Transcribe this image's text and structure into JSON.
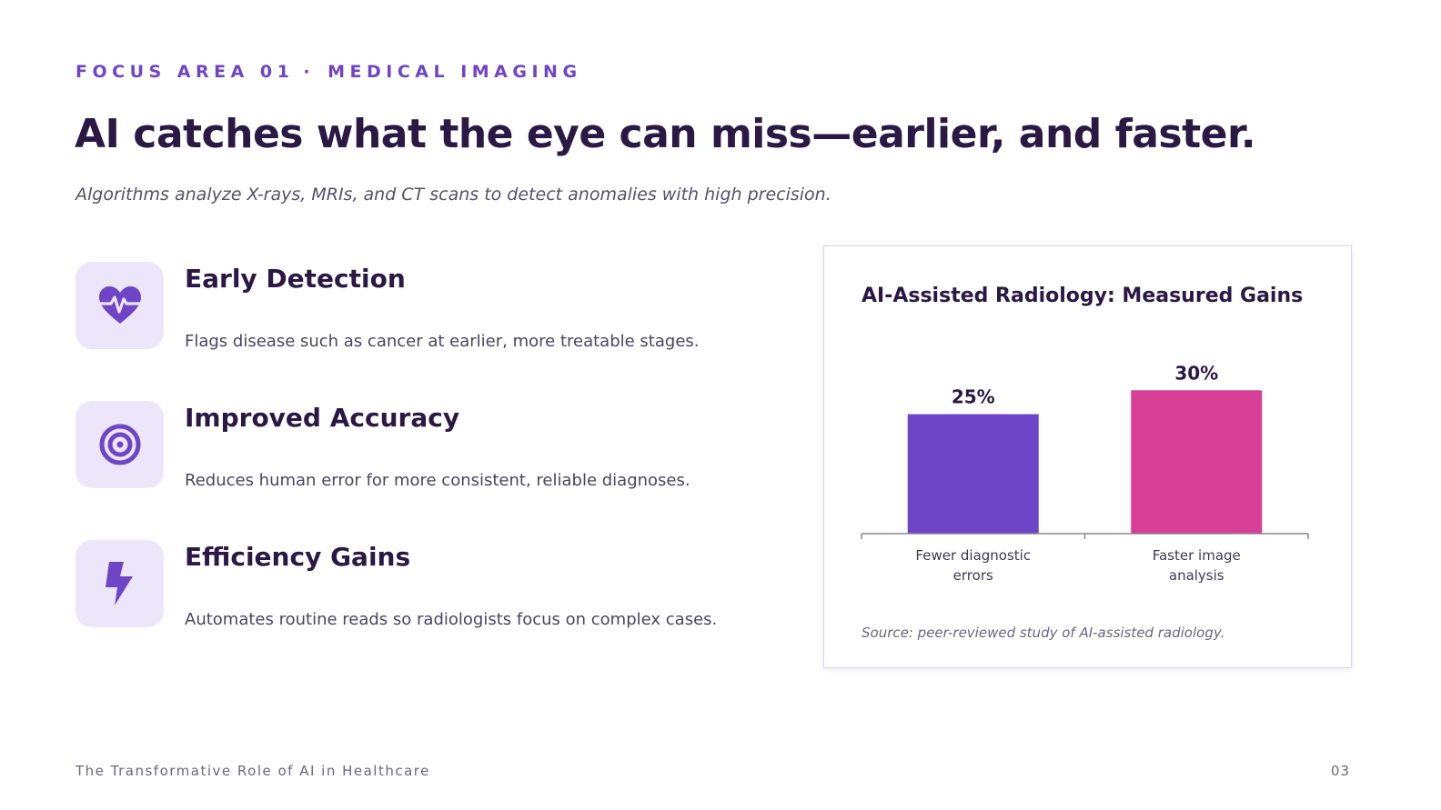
{
  "kicker": {
    "area": "FOCUS AREA 01",
    "separator": "·",
    "topic": "MEDICAL IMAGING"
  },
  "headline": "AI catches what the eye can miss—earlier, and faster.",
  "subhead": "Algorithms analyze X-rays, MRIs, and CT scans to detect anomalies with high precision.",
  "features": [
    {
      "icon": "heartbeat-icon",
      "title": "Early Detection",
      "description": "Flags disease such as cancer at earlier, more treatable stages."
    },
    {
      "icon": "target-icon",
      "title": "Improved Accuracy",
      "description": "Reduces human error for more consistent, reliable diagnoses."
    },
    {
      "icon": "lightning-bolt-icon",
      "title": "Efficiency Gains",
      "description": "Automates routine reads so radiologists focus on complex cases."
    }
  ],
  "colors": {
    "accent": "#6f45c8",
    "bar_1": "#6f45c8",
    "bar_2": "#d63f95",
    "icon_bg": "#ede6fb",
    "heading": "#2a1845"
  },
  "chart_data": {
    "type": "bar",
    "title": "AI-Assisted Radiology: Measured Gains",
    "categories": [
      [
        "Fewer diagnostic",
        "errors"
      ],
      [
        "Faster image",
        "analysis"
      ]
    ],
    "values": [
      25,
      30
    ],
    "value_labels": [
      "25%",
      "30%"
    ],
    "ylim": [
      0,
      35
    ],
    "grid": false,
    "legend": "none",
    "source": "Source: peer-reviewed study of AI-assisted radiology."
  },
  "footer": {
    "deck_title": "The Transformative Role of AI in Healthcare",
    "page_number": "03"
  }
}
